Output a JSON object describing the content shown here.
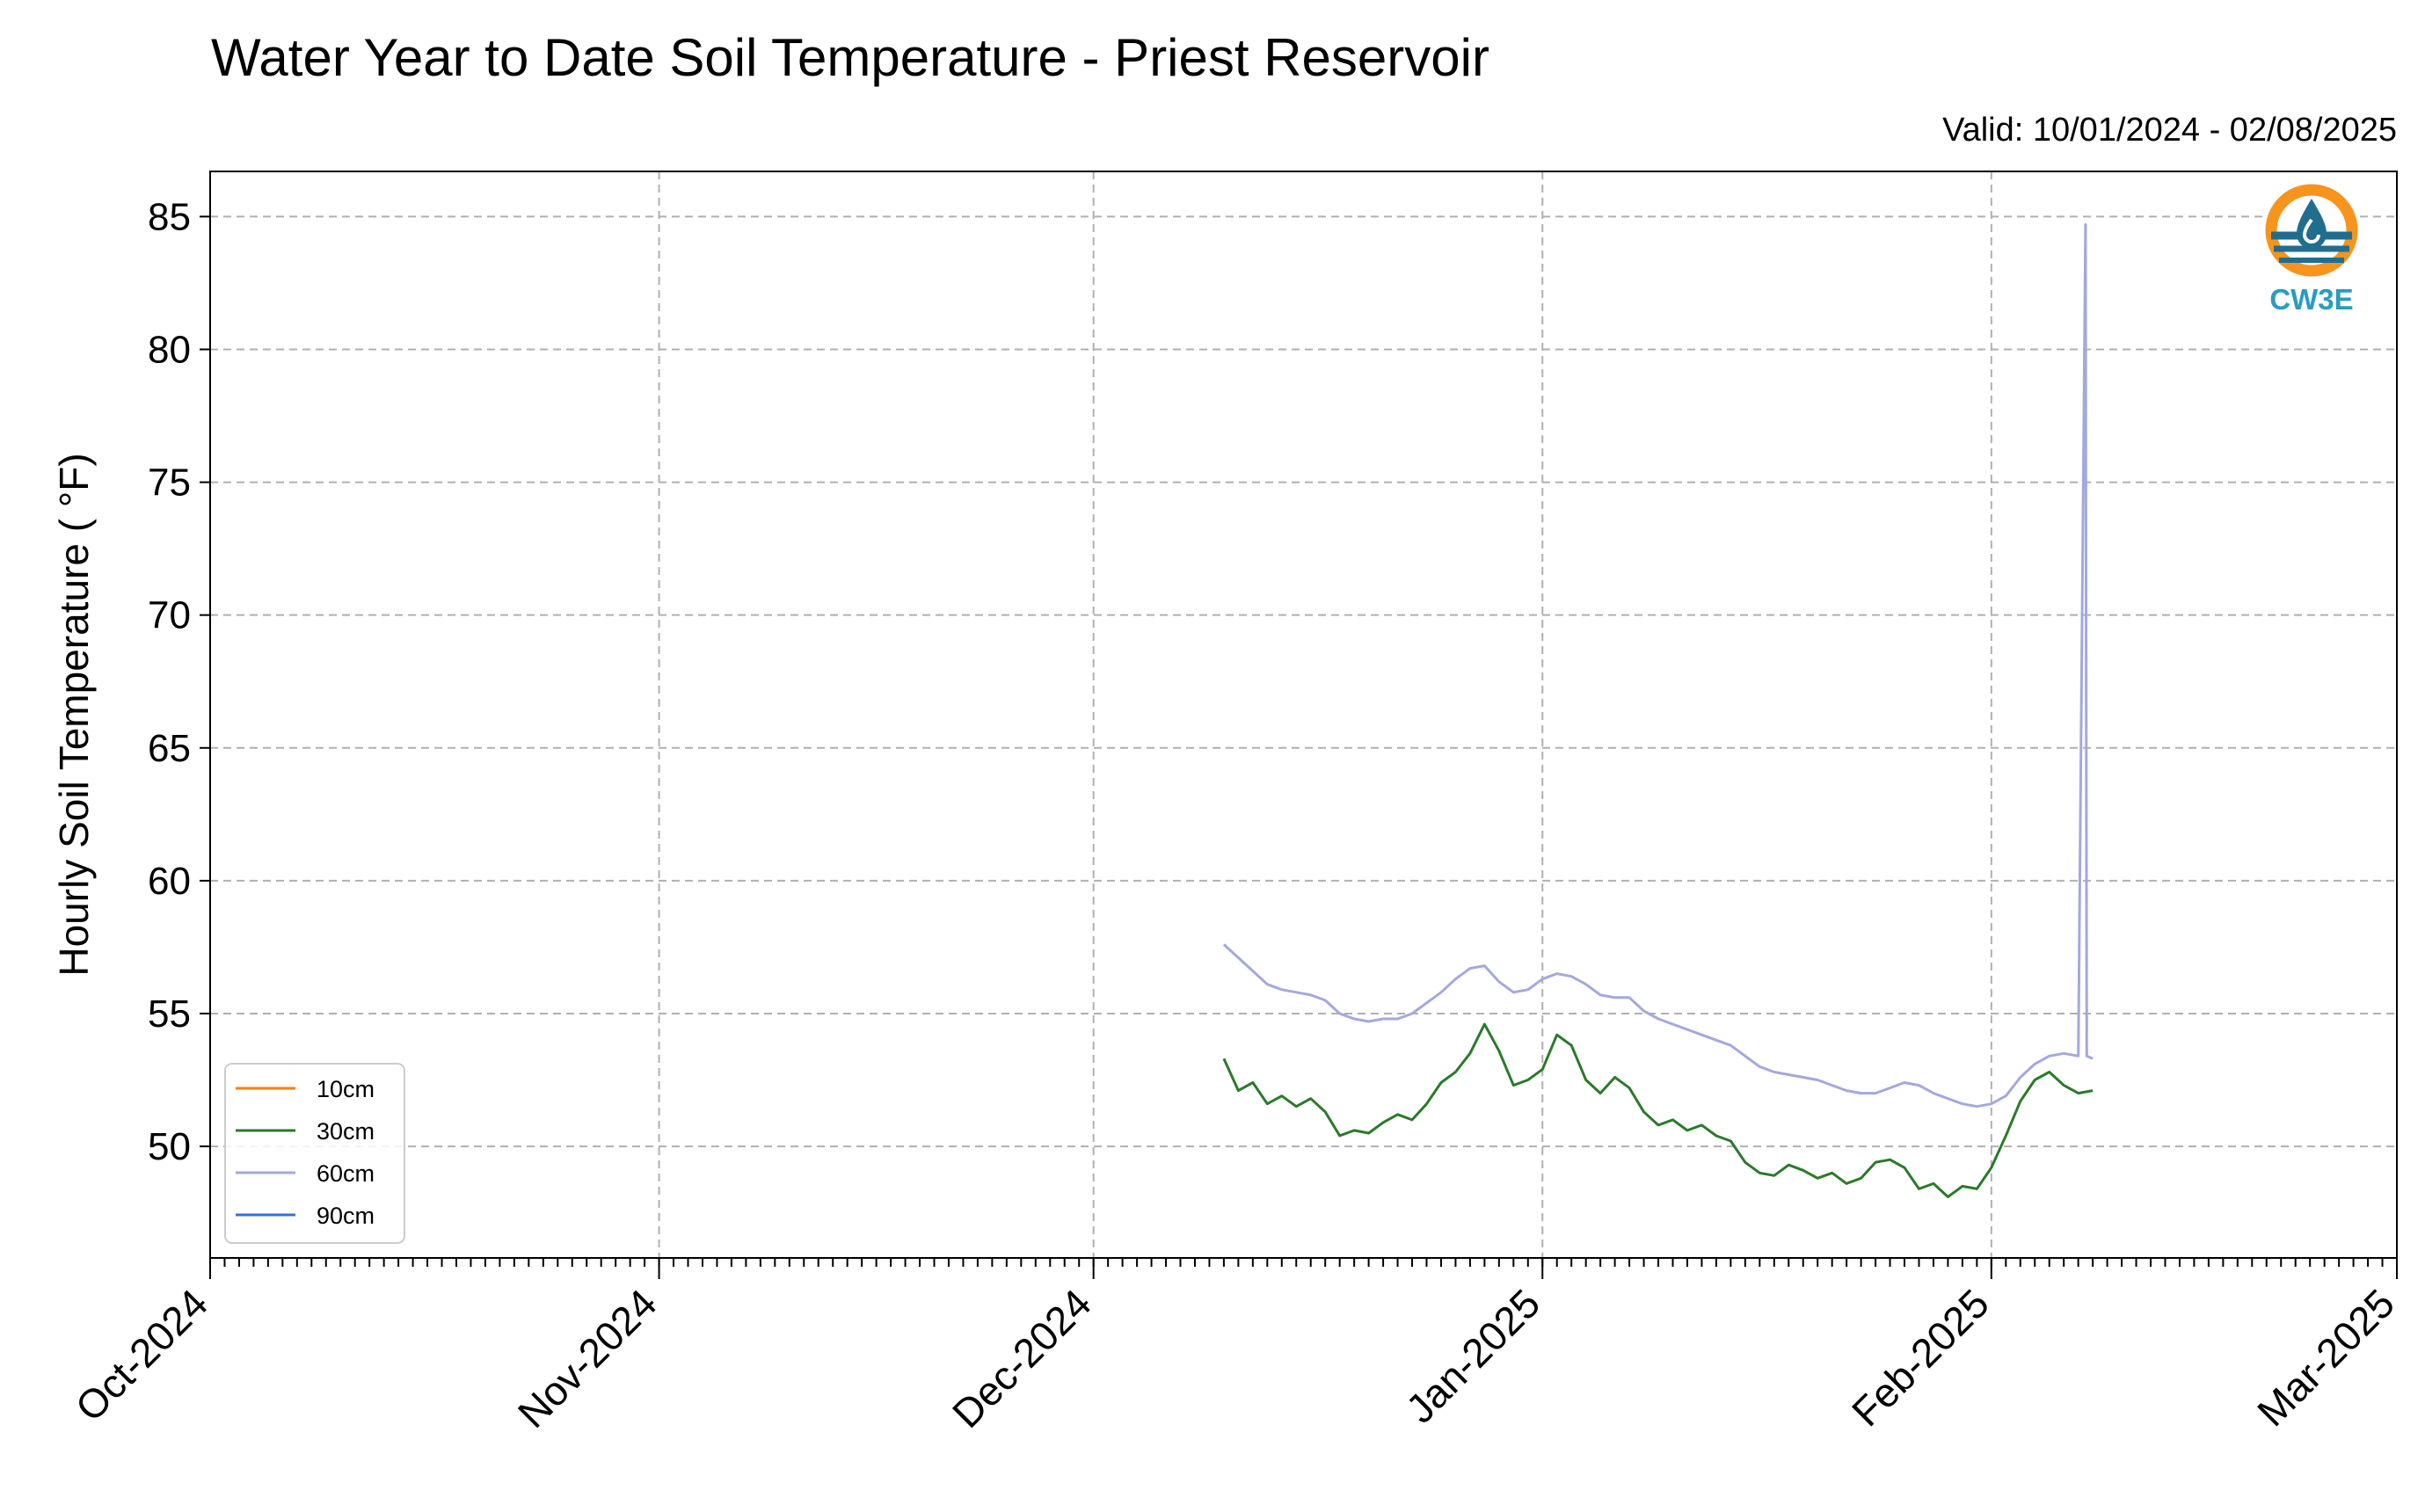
{
  "chart_data": {
    "type": "line",
    "title": "Water Year to Date Soil Temperature - Priest Reservoir",
    "subtitle": "Valid: 10/01/2024 - 02/08/2025",
    "ylabel": "Hourly Soil Temperature ( °F)",
    "xlabel": "",
    "xlim": [
      "2024-10-01",
      "2025-03-01"
    ],
    "ylim": [
      45.8,
      86.7
    ],
    "yticks": [
      50,
      55,
      60,
      65,
      70,
      75,
      80,
      85
    ],
    "xticks": [
      {
        "date": "2024-10-01",
        "label": "Oct-2024"
      },
      {
        "date": "2024-11-01",
        "label": "Nov-2024"
      },
      {
        "date": "2024-12-01",
        "label": "Dec-2024"
      },
      {
        "date": "2025-01-01",
        "label": "Jan-2025"
      },
      {
        "date": "2025-02-01",
        "label": "Feb-2025"
      },
      {
        "date": "2025-03-01",
        "label": "Mar-2025"
      }
    ],
    "grid": true,
    "legend_position": "lower-left",
    "series": [
      {
        "name": "10cm",
        "color": "#ff7f0e",
        "points": []
      },
      {
        "name": "30cm",
        "color": "#2a7a2a",
        "points": [
          [
            "2024-12-10",
            53.3
          ],
          [
            "2024-12-11",
            52.1
          ],
          [
            "2024-12-12",
            52.4
          ],
          [
            "2024-12-13",
            51.6
          ],
          [
            "2024-12-14",
            51.9
          ],
          [
            "2024-12-15",
            51.5
          ],
          [
            "2024-12-16",
            51.8
          ],
          [
            "2024-12-17",
            51.3
          ],
          [
            "2024-12-18",
            50.4
          ],
          [
            "2024-12-19",
            50.6
          ],
          [
            "2024-12-20",
            50.5
          ],
          [
            "2024-12-21",
            50.9
          ],
          [
            "2024-12-22",
            51.2
          ],
          [
            "2024-12-23",
            51.0
          ],
          [
            "2024-12-24",
            51.6
          ],
          [
            "2024-12-25",
            52.4
          ],
          [
            "2024-12-26",
            52.8
          ],
          [
            "2024-12-27",
            53.5
          ],
          [
            "2024-12-28",
            54.6
          ],
          [
            "2024-12-29",
            53.6
          ],
          [
            "2024-12-30",
            52.3
          ],
          [
            "2024-12-31",
            52.5
          ],
          [
            "2025-01-01",
            52.9
          ],
          [
            "2025-01-02",
            54.2
          ],
          [
            "2025-01-03",
            53.8
          ],
          [
            "2025-01-04",
            52.5
          ],
          [
            "2025-01-05",
            52.0
          ],
          [
            "2025-01-06",
            52.6
          ],
          [
            "2025-01-07",
            52.2
          ],
          [
            "2025-01-08",
            51.3
          ],
          [
            "2025-01-09",
            50.8
          ],
          [
            "2025-01-10",
            51.0
          ],
          [
            "2025-01-11",
            50.6
          ],
          [
            "2025-01-12",
            50.8
          ],
          [
            "2025-01-13",
            50.4
          ],
          [
            "2025-01-14",
            50.2
          ],
          [
            "2025-01-15",
            49.4
          ],
          [
            "2025-01-16",
            49.0
          ],
          [
            "2025-01-17",
            48.9
          ],
          [
            "2025-01-18",
            49.3
          ],
          [
            "2025-01-19",
            49.1
          ],
          [
            "2025-01-20",
            48.8
          ],
          [
            "2025-01-21",
            49.0
          ],
          [
            "2025-01-22",
            48.6
          ],
          [
            "2025-01-23",
            48.8
          ],
          [
            "2025-01-24",
            49.4
          ],
          [
            "2025-01-25",
            49.5
          ],
          [
            "2025-01-26",
            49.2
          ],
          [
            "2025-01-27",
            48.4
          ],
          [
            "2025-01-28",
            48.6
          ],
          [
            "2025-01-29",
            48.1
          ],
          [
            "2025-01-30",
            48.5
          ],
          [
            "2025-01-31",
            48.4
          ],
          [
            "2025-02-01",
            49.2
          ],
          [
            "2025-02-02",
            50.4
          ],
          [
            "2025-02-03",
            51.7
          ],
          [
            "2025-02-04",
            52.5
          ],
          [
            "2025-02-05",
            52.8
          ],
          [
            "2025-02-06",
            52.3
          ],
          [
            "2025-02-07",
            52.0
          ],
          [
            "2025-02-08",
            52.1
          ]
        ]
      },
      {
        "name": "60cm",
        "color": "#a3a8de",
        "points": [
          [
            "2024-12-10",
            57.6
          ],
          [
            "2024-12-11",
            57.1
          ],
          [
            "2024-12-12",
            56.6
          ],
          [
            "2024-12-13",
            56.1
          ],
          [
            "2024-12-14",
            55.9
          ],
          [
            "2024-12-15",
            55.8
          ],
          [
            "2024-12-16",
            55.7
          ],
          [
            "2024-12-17",
            55.5
          ],
          [
            "2024-12-18",
            55.0
          ],
          [
            "2024-12-19",
            54.8
          ],
          [
            "2024-12-20",
            54.7
          ],
          [
            "2024-12-21",
            54.8
          ],
          [
            "2024-12-22",
            54.8
          ],
          [
            "2024-12-23",
            55.0
          ],
          [
            "2024-12-24",
            55.4
          ],
          [
            "2024-12-25",
            55.8
          ],
          [
            "2024-12-26",
            56.3
          ],
          [
            "2024-12-27",
            56.7
          ],
          [
            "2024-12-28",
            56.8
          ],
          [
            "2024-12-29",
            56.2
          ],
          [
            "2024-12-30",
            55.8
          ],
          [
            "2024-12-31",
            55.9
          ],
          [
            "2025-01-01",
            56.3
          ],
          [
            "2025-01-02",
            56.5
          ],
          [
            "2025-01-03",
            56.4
          ],
          [
            "2025-01-04",
            56.1
          ],
          [
            "2025-01-05",
            55.7
          ],
          [
            "2025-01-06",
            55.6
          ],
          [
            "2025-01-07",
            55.6
          ],
          [
            "2025-01-08",
            55.1
          ],
          [
            "2025-01-09",
            54.8
          ],
          [
            "2025-01-10",
            54.6
          ],
          [
            "2025-01-11",
            54.4
          ],
          [
            "2025-01-12",
            54.2
          ],
          [
            "2025-01-13",
            54.0
          ],
          [
            "2025-01-14",
            53.8
          ],
          [
            "2025-01-15",
            53.4
          ],
          [
            "2025-01-16",
            53.0
          ],
          [
            "2025-01-17",
            52.8
          ],
          [
            "2025-01-18",
            52.7
          ],
          [
            "2025-01-19",
            52.6
          ],
          [
            "2025-01-20",
            52.5
          ],
          [
            "2025-01-21",
            52.3
          ],
          [
            "2025-01-22",
            52.1
          ],
          [
            "2025-01-23",
            52.0
          ],
          [
            "2025-01-24",
            52.0
          ],
          [
            "2025-01-25",
            52.2
          ],
          [
            "2025-01-26",
            52.4
          ],
          [
            "2025-01-27",
            52.3
          ],
          [
            "2025-01-28",
            52.0
          ],
          [
            "2025-01-29",
            51.8
          ],
          [
            "2025-01-30",
            51.6
          ],
          [
            "2025-01-31",
            51.5
          ],
          [
            "2025-02-01",
            51.6
          ],
          [
            "2025-02-02",
            51.9
          ],
          [
            "2025-02-03",
            52.6
          ],
          [
            "2025-02-04",
            53.1
          ],
          [
            "2025-02-05",
            53.4
          ],
          [
            "2025-02-06",
            53.5
          ],
          [
            "2025-02-07",
            53.4
          ],
          [
            "2025-02-07T12:00",
            84.7
          ],
          [
            "2025-02-07T14:00",
            53.4
          ],
          [
            "2025-02-08",
            53.3
          ]
        ]
      },
      {
        "name": "90cm",
        "color": "#3a6fd8",
        "points": []
      }
    ]
  },
  "logo": {
    "text": "CW3E",
    "icon": "cw3e-logo-icon",
    "ring_color": "#f7941d",
    "wave_color": "#1f6e8f",
    "text_color": "#2a9bc1"
  }
}
